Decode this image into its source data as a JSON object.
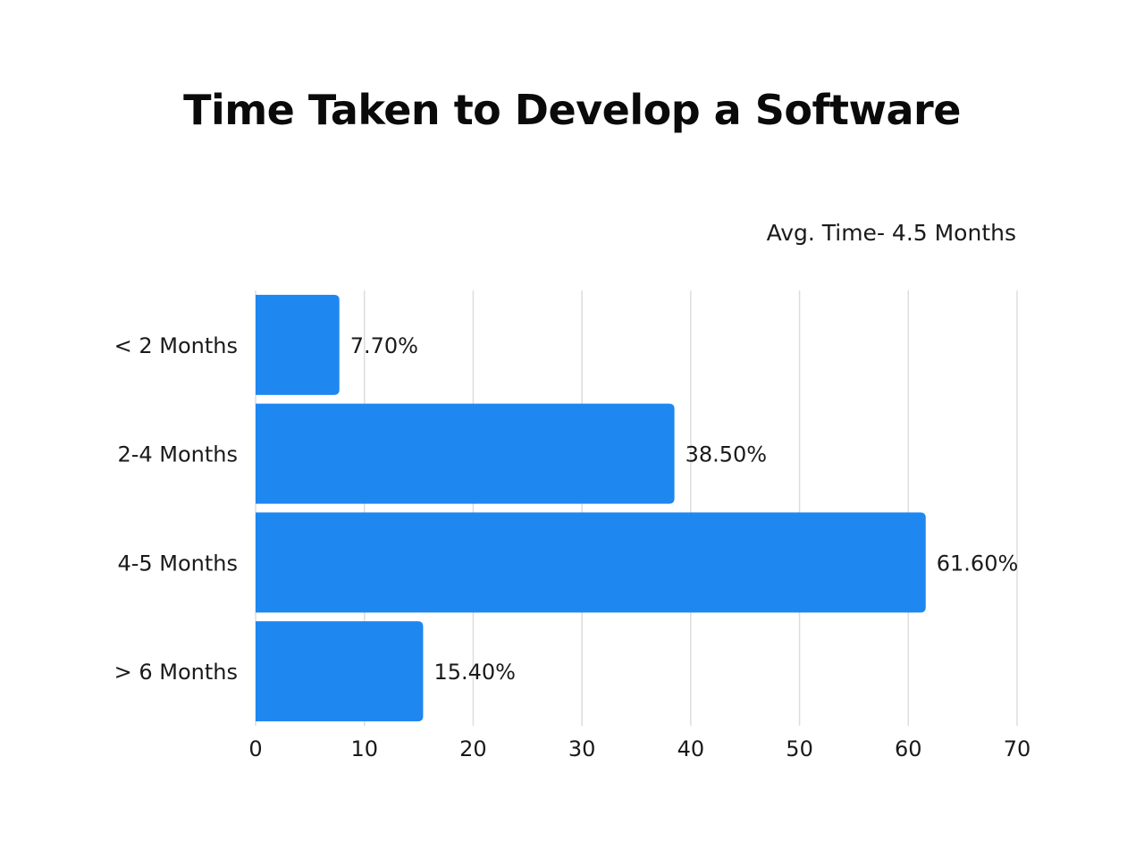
{
  "chart_data": {
    "type": "bar",
    "orientation": "horizontal",
    "title": "Time Taken to Develop a Software",
    "annotation": "Avg. Time- 4.5 Months",
    "categories": [
      "< 2 Months",
      "2-4 Months",
      "4-5 Months",
      "> 6 Months"
    ],
    "values": [
      7.7,
      38.5,
      61.6,
      15.4
    ],
    "data_labels": [
      "7.70%",
      "38.50%",
      "61.60%",
      "15.40%"
    ],
    "x_ticks": [
      "0",
      "10",
      "20",
      "30",
      "40",
      "50",
      "60",
      "70"
    ],
    "xlim": [
      0,
      70
    ],
    "xlabel": "",
    "ylabel": "",
    "grid": true,
    "legend": "none",
    "bar_color": "#1e87f0",
    "grid_color": "#dddddd"
  }
}
